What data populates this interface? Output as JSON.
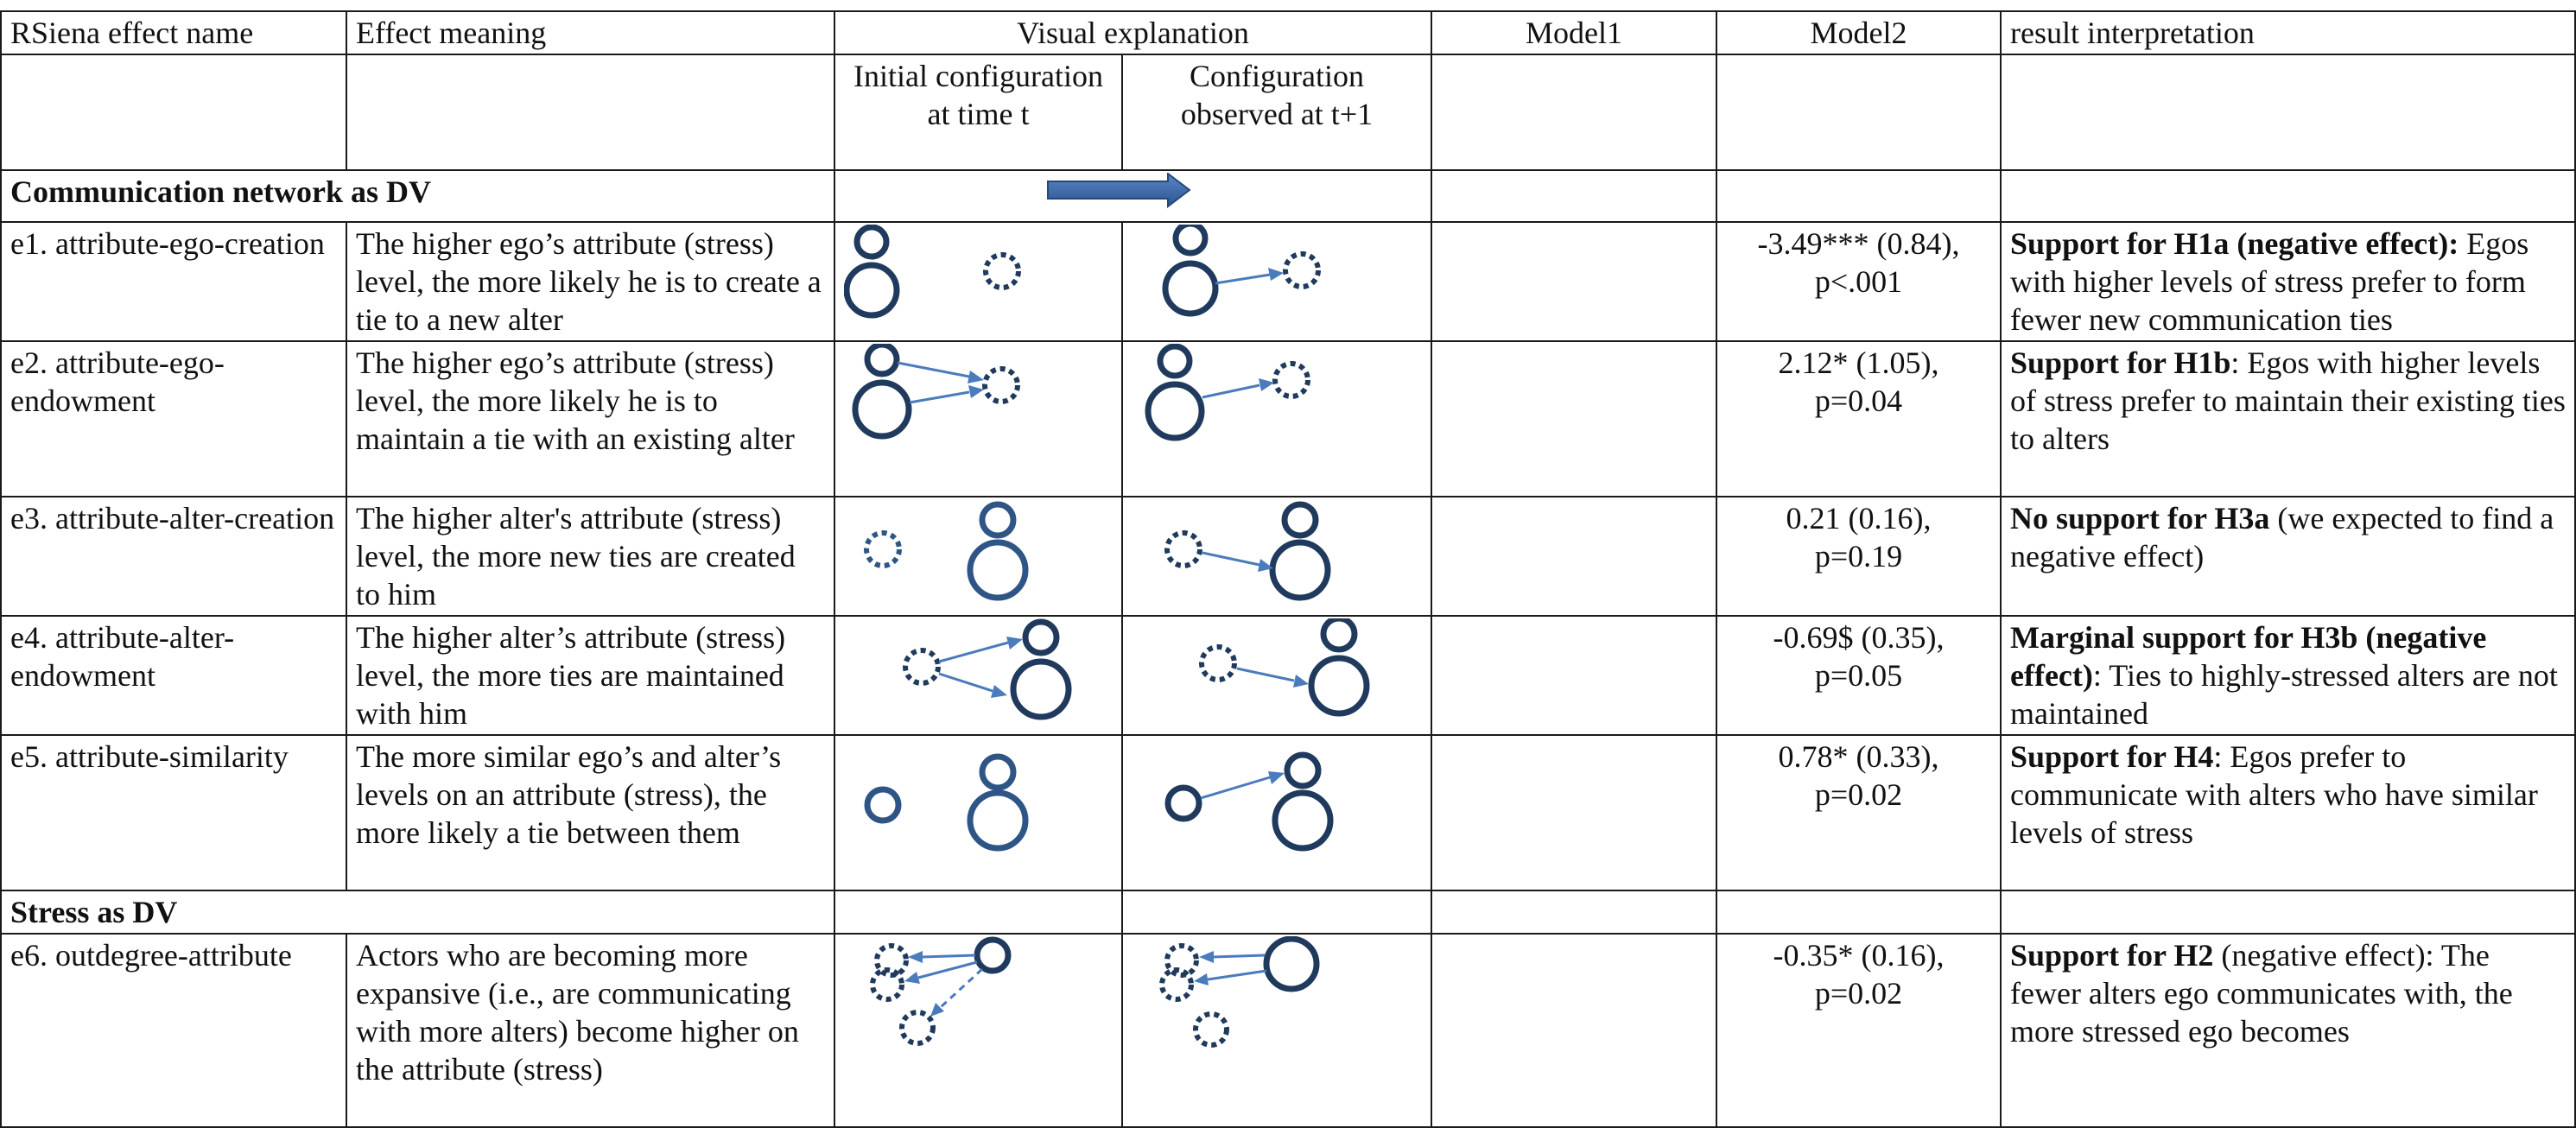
{
  "header": {
    "col_effect_name": "RSiena effect name",
    "col_meaning": "Effect meaning",
    "col_visual": "Visual explanation",
    "col_model1": "Model1",
    "col_model2": "Model2",
    "col_interpretation": "result interpretation",
    "sub_initial": "Initial configuration at time t",
    "sub_observed": "Configuration observed at t+1"
  },
  "sections": {
    "communication": "Communication network as DV",
    "stress": "Stress as DV"
  },
  "rows": [
    {
      "name": "e1. attribute-ego-creation",
      "meaning": "The higher ego’s attribute (stress) level, the more likely he is to create a tie to a new alter",
      "model1": "",
      "model2_a": "-3.49*** (0.84),",
      "model2_b": "p<.001",
      "interp_bold": "Support for H1a (negative effect):",
      "interp_rest": " Egos with higher levels of stress prefer to form fewer new communication ties"
    },
    {
      "name": "e2. attribute-ego-endowment",
      "meaning": "The higher ego’s attribute (stress) level, the more likely he is to maintain a tie with an existing alter",
      "model1": "",
      "model2_a": "2.12* (1.05),",
      "model2_b": "p=0.04",
      "interp_bold": "Support for H1b",
      "interp_rest": ": Egos with higher levels of stress prefer to maintain their existing ties to alters"
    },
    {
      "name": "e3. attribute-alter-creation",
      "meaning": "The higher alter's attribute (stress) level, the more new ties are created to him",
      "model1": "",
      "model2_a": "0.21 (0.16),",
      "model2_b": "p=0.19",
      "interp_bold": "No support for H3a",
      "interp_rest": " (we expected to find a negative effect)"
    },
    {
      "name": "e4. attribute-alter-endowment",
      "meaning": "The higher alter’s attribute (stress) level, the more ties are maintained with him",
      "model1": "",
      "model2_a": "-0.69$ (0.35),",
      "model2_b": "p=0.05",
      "interp_bold": "Marginal support for H3b (negative effect)",
      "interp_rest": ": Ties to highly-stressed alters are not maintained"
    },
    {
      "name": "e5. attribute-similarity",
      "meaning": "The more similar ego’s and alter’s levels on an attribute (stress), the more likely a tie between them",
      "model1": "",
      "model2_a": "0.78* (0.33),",
      "model2_b": "p=0.02",
      "interp_bold": "Support for H4",
      "interp_rest": ": Egos prefer to communicate with alters who have similar levels of stress"
    },
    {
      "name": "e6. outdegree-attribute",
      "meaning": "Actors who are becoming more expansive (i.e., are communicating with more alters) become higher on the attribute (stress)",
      "model1": "",
      "model2_a": "-0.35* (0.16),",
      "model2_b": "p=0.02",
      "interp_bold": "Support for H2",
      "interp_rest": " (negative effect): The fewer alters ego communicates with, the more stressed ego becomes"
    }
  ],
  "colors": {
    "node_dark": "#1f3a5c",
    "node_mid": "#2e5585",
    "edge": "#4a7bbd",
    "big_arrow": "#3a68a8",
    "grid": "#1a1a1a"
  }
}
